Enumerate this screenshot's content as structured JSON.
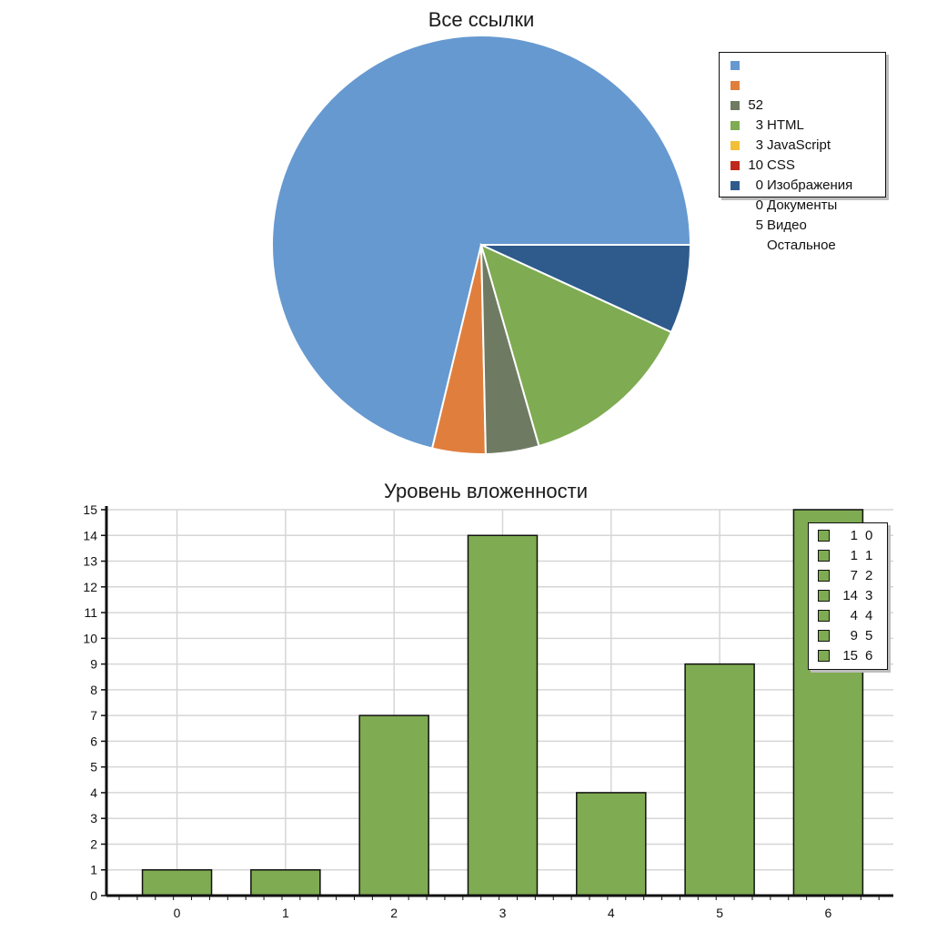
{
  "chart_data": [
    {
      "type": "pie",
      "title": "Все ссылки",
      "slices": [
        {
          "label": "HTML",
          "value": 52,
          "color": "#6699d0"
        },
        {
          "label": "JavaScript",
          "value": 3,
          "color": "#e07f3d"
        },
        {
          "label": "CSS",
          "value": 3,
          "color": "#6f7a63"
        },
        {
          "label": "Изображения",
          "value": 10,
          "color": "#7fab52"
        },
        {
          "label": "Документы",
          "value": 0,
          "color": "#f2c037"
        },
        {
          "label": "Видео",
          "value": 0,
          "color": "#c0281b"
        },
        {
          "label": "Остальное",
          "value": 5,
          "color": "#2e5b8c"
        }
      ],
      "legend_position": "top-right"
    },
    {
      "type": "bar",
      "title": "Уровень вложенности",
      "categories": [
        "0",
        "1",
        "2",
        "3",
        "4",
        "5",
        "6"
      ],
      "values": [
        1,
        1,
        7,
        14,
        4,
        9,
        15
      ],
      "ylim": [
        0,
        15
      ],
      "yticks": [
        "0",
        "1",
        "2",
        "3",
        "4",
        "5",
        "6",
        "7",
        "8",
        "9",
        "10",
        "11",
        "12",
        "13",
        "14",
        "15"
      ],
      "grid": true,
      "bar_color": "#7fab52",
      "legend": [
        {
          "value": "1",
          "label": "0"
        },
        {
          "value": "1",
          "label": "1"
        },
        {
          "value": "7",
          "label": "2"
        },
        {
          "value": "14",
          "label": "3"
        },
        {
          "value": "4",
          "label": "4"
        },
        {
          "value": "9",
          "label": "5"
        },
        {
          "value": "15",
          "label": "6"
        }
      ],
      "legend_position": "top-right"
    }
  ]
}
